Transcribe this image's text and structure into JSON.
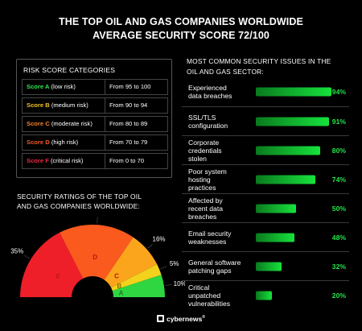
{
  "title_line1": "THE TOP OIL AND GAS COMPANIES WORLDWIDE",
  "title_line2": "AVERAGE SECURITY SCORE 72/100",
  "risk_header": "RISK SCORE CATEGORIES",
  "risk_rows": [
    {
      "score": "Score A",
      "risk": "(low risk)",
      "range": "From 95 to 100",
      "color": "#2ee84e"
    },
    {
      "score": "Score B",
      "risk": "(medium risk)",
      "range": "From 90 to 94",
      "color": "#f2c026"
    },
    {
      "score": "Score C",
      "risk": "(moderate risk)",
      "range": "From 80 to 89",
      "color": "#f57f2a"
    },
    {
      "score": "Score D",
      "risk": "(high risk)",
      "range": "From 70 to 79",
      "color": "#f2572a"
    },
    {
      "score": "Score F",
      "risk": "(critical risk)",
      "range": "From 0 to 70",
      "color": "#ef2a40"
    }
  ],
  "ratings_title_line1": "SECURITY RATINGS OF THE TOP OIL",
  "ratings_title_line2": "AND GAS COMPANIES WORLDWIDE:",
  "issues_title_line1": "MOST COMMON SECURITY ISSUES IN THE",
  "issues_title_line2": "OIL AND GAS SECTOR:",
  "footer_brand": "cybernews",
  "footer_mark": "®",
  "chart_data": [
    {
      "type": "pie",
      "style": "semi-donut gauge",
      "categories": [
        "F",
        "D",
        "C",
        "B",
        "A"
      ],
      "values": [
        35,
        34,
        16,
        5,
        10
      ],
      "value_labels": [
        "35%",
        "34%",
        "16%",
        "5%",
        "10%"
      ],
      "colors": [
        "#ef1f2a",
        "#fb5a1e",
        "#fba51c",
        "#f2d21c",
        "#2fd641"
      ]
    },
    {
      "type": "bar",
      "orientation": "horizontal",
      "categories": [
        [
          "Experienced",
          "data breaches"
        ],
        [
          "SSL/TLS",
          "configuration"
        ],
        [
          "Corporate",
          "credentials",
          "stolen"
        ],
        [
          "Poor system",
          "hosting",
          "practices"
        ],
        [
          "Affected by",
          "recent data",
          "breaches"
        ],
        [
          "Email security",
          "weaknesses"
        ],
        [
          "General software",
          "patching gaps"
        ],
        [
          "Critical",
          "unpatched",
          "vulnerabilities"
        ]
      ],
      "values": [
        94,
        91,
        80,
        74,
        50,
        48,
        32,
        20
      ],
      "value_labels": [
        "94%",
        "91%",
        "80%",
        "74%",
        "50%",
        "48%",
        "32%",
        "20%"
      ],
      "xlim": [
        0,
        100
      ],
      "bar_color": "#16e33c"
    }
  ]
}
